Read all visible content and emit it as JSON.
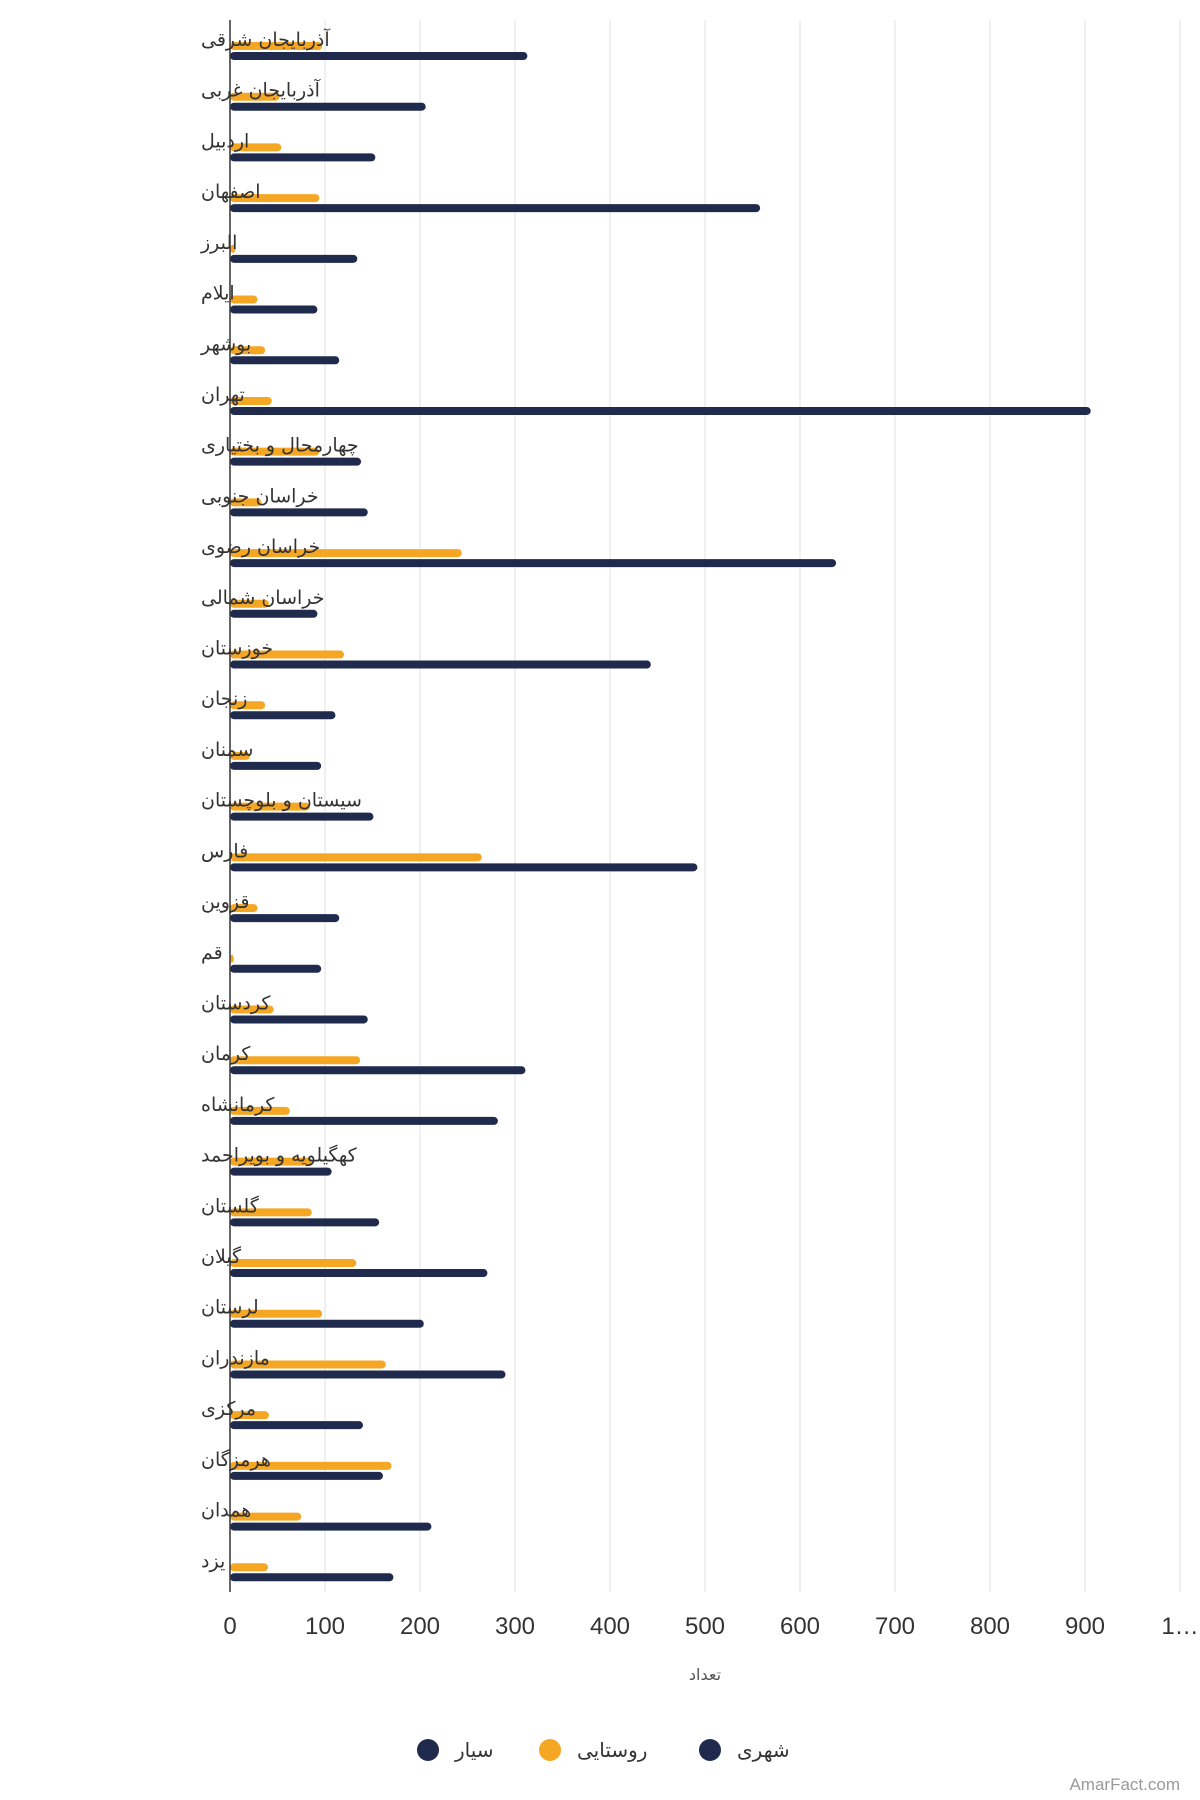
{
  "chart_data": {
    "type": "bar",
    "orientation": "horizontal",
    "categories": [
      "آذربایجان شرقی",
      "آذربایجان غربی",
      "اردبیل",
      "اصفهان",
      "البرز",
      "ایلام",
      "بوشهر",
      "تهران",
      "چهارمحال و بختیاری",
      "خراسان جنوبی",
      "خراسان رضوی",
      "خراسان شمالی",
      "خوزستان",
      "زنجان",
      "سمنان",
      "سیستان و بلوچستان",
      "فارس",
      "قزوین",
      "قم",
      "کردستان",
      "کرمان",
      "کرمانشاه",
      "کهگیلویه و بویراحمد",
      "گلستان",
      "گیلان",
      "لرستان",
      "مازندران",
      "مرکزی",
      "هرمزگان",
      "همدان",
      "یزد"
    ],
    "series": [
      {
        "name": "سیار",
        "color": "#1f2a4d",
        "values": [
          0,
          0,
          0,
          0,
          0,
          0,
          0,
          0,
          0,
          0,
          0,
          0,
          0,
          0,
          0,
          0,
          0,
          0,
          0,
          0,
          0,
          0,
          0,
          0,
          0,
          0,
          0,
          0,
          0,
          0,
          0
        ]
      },
      {
        "name": "روستایی",
        "color": "#f5a623",
        "values": [
          97,
          52,
          54,
          94,
          6,
          29,
          37,
          44,
          94,
          33,
          244,
          41,
          120,
          37,
          21,
          84,
          265,
          29,
          4,
          46,
          137,
          63,
          86,
          86,
          133,
          97,
          164,
          41,
          170,
          75,
          40
        ]
      },
      {
        "name": "شهری",
        "color": "#1f2a4d",
        "values": [
          313,
          206,
          153,
          558,
          134,
          92,
          115,
          906,
          138,
          145,
          638,
          92,
          443,
          111,
          96,
          151,
          492,
          115,
          96,
          145,
          311,
          282,
          107,
          157,
          271,
          204,
          290,
          140,
          161,
          212,
          172
        ]
      }
    ],
    "xlim": [
      0,
      1000
    ],
    "x_ticks": [
      "0",
      "100",
      "200",
      "300",
      "400",
      "500",
      "600",
      "700",
      "800",
      "900",
      "1…"
    ],
    "xlabel": "تعداد",
    "grid": "vertical",
    "legend_position": "bottom"
  },
  "credit": "AmarFact.com"
}
